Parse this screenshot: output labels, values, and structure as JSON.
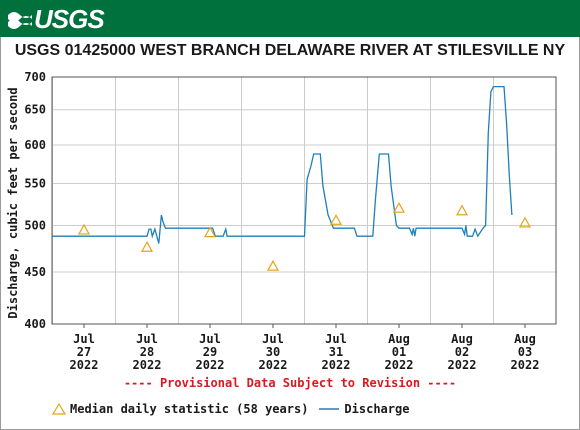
{
  "banner": {
    "logo_text": "USGS",
    "color": "#00703c"
  },
  "chart_data": {
    "type": "line",
    "title": "USGS 01425000 WEST BRANCH DELAWARE RIVER AT STILESVILLE NY",
    "ylabel": "Discharge, cubic feet per second",
    "xlabel": "",
    "y_scale": "log",
    "ylim": [
      400,
      700
    ],
    "y_ticks": [
      400,
      450,
      500,
      550,
      600,
      650,
      700
    ],
    "x_ticks": [
      {
        "day": "Jul",
        "date": "27",
        "year": "2022"
      },
      {
        "day": "Jul",
        "date": "28",
        "year": "2022"
      },
      {
        "day": "Jul",
        "date": "29",
        "year": "2022"
      },
      {
        "day": "Jul",
        "date": "30",
        "year": "2022"
      },
      {
        "day": "Jul",
        "date": "31",
        "year": "2022"
      },
      {
        "day": "Aug",
        "date": "01",
        "year": "2022"
      },
      {
        "day": "Aug",
        "date": "02",
        "year": "2022"
      },
      {
        "day": "Aug",
        "date": "03",
        "year": "2022"
      }
    ],
    "grid": true,
    "series": [
      {
        "name": "Discharge",
        "color": "#1f7fba",
        "points": [
          [
            "2022-07-26 12:00",
            488
          ],
          [
            "2022-07-27 18:00",
            488
          ],
          [
            "2022-07-28 00:00",
            488
          ],
          [
            "2022-07-28 00:45",
            496
          ],
          [
            "2022-07-28 01:30",
            496
          ],
          [
            "2022-07-28 02:00",
            488
          ],
          [
            "2022-07-28 03:00",
            496
          ],
          [
            "2022-07-28 04:30",
            480
          ],
          [
            "2022-07-28 05:00",
            496
          ],
          [
            "2022-07-28 05:30",
            512
          ],
          [
            "2022-07-28 06:00",
            505
          ],
          [
            "2022-07-28 07:00",
            497
          ],
          [
            "2022-07-29 01:00",
            497
          ],
          [
            "2022-07-29 02:00",
            488
          ],
          [
            "2022-07-29 05:00",
            488
          ],
          [
            "2022-07-29 06:00",
            496
          ],
          [
            "2022-07-29 06:30",
            488
          ],
          [
            "2022-07-30 12:00",
            488
          ],
          [
            "2022-07-30 13:00",
            555
          ],
          [
            "2022-07-30 14:30",
            573
          ],
          [
            "2022-07-30 15:30",
            588
          ],
          [
            "2022-07-30 18:00",
            588
          ],
          [
            "2022-07-30 19:00",
            547
          ],
          [
            "2022-07-30 21:00",
            512
          ],
          [
            "2022-07-30 23:00",
            497
          ],
          [
            "2022-07-31 07:00",
            497
          ],
          [
            "2022-07-31 08:00",
            488
          ],
          [
            "2022-07-31 14:00",
            488
          ],
          [
            "2022-07-31 15:00",
            530
          ],
          [
            "2022-07-31 16:30",
            588
          ],
          [
            "2022-07-31 20:00",
            588
          ],
          [
            "2022-07-31 21:00",
            547
          ],
          [
            "2022-07-31 23:00",
            500
          ],
          [
            "2022-08-01 00:00",
            497
          ],
          [
            "2022-08-01 04:00",
            497
          ],
          [
            "2022-08-01 05:00",
            490
          ],
          [
            "2022-08-01 05:30",
            497
          ],
          [
            "2022-08-01 06:00",
            488
          ],
          [
            "2022-08-01 06:30",
            497
          ],
          [
            "2022-08-02 00:00",
            497
          ],
          [
            "2022-08-02 01:00",
            490
          ],
          [
            "2022-08-02 01:30",
            500
          ],
          [
            "2022-08-02 02:00",
            488
          ],
          [
            "2022-08-02 04:00",
            488
          ],
          [
            "2022-08-02 05:00",
            496
          ],
          [
            "2022-08-02 06:00",
            488
          ],
          [
            "2022-08-02 08:00",
            497
          ],
          [
            "2022-08-02 09:00",
            500
          ],
          [
            "2022-08-02 10:00",
            617
          ],
          [
            "2022-08-02 11:00",
            677
          ],
          [
            "2022-08-02 12:00",
            685
          ],
          [
            "2022-08-02 16:00",
            685
          ],
          [
            "2022-08-02 17:00",
            630
          ],
          [
            "2022-08-02 18:00",
            560
          ],
          [
            "2022-08-02 19:00",
            512
          ]
        ]
      }
    ],
    "median": {
      "name": "Median daily statistic (58 years)",
      "color": "#e8a317",
      "points": [
        [
          "2022-07-27",
          495
        ],
        [
          "2022-07-28",
          476
        ],
        [
          "2022-07-29",
          492
        ],
        [
          "2022-07-30",
          456
        ],
        [
          "2022-07-31",
          506
        ],
        [
          "2022-08-01",
          520
        ],
        [
          "2022-08-02",
          517
        ],
        [
          "2022-08-03",
          503
        ]
      ]
    }
  },
  "provisional_note": "---- Provisional Data Subject to Revision ----",
  "legend": {
    "median_label": "Median daily statistic (58 years)",
    "discharge_label": "Discharge"
  }
}
